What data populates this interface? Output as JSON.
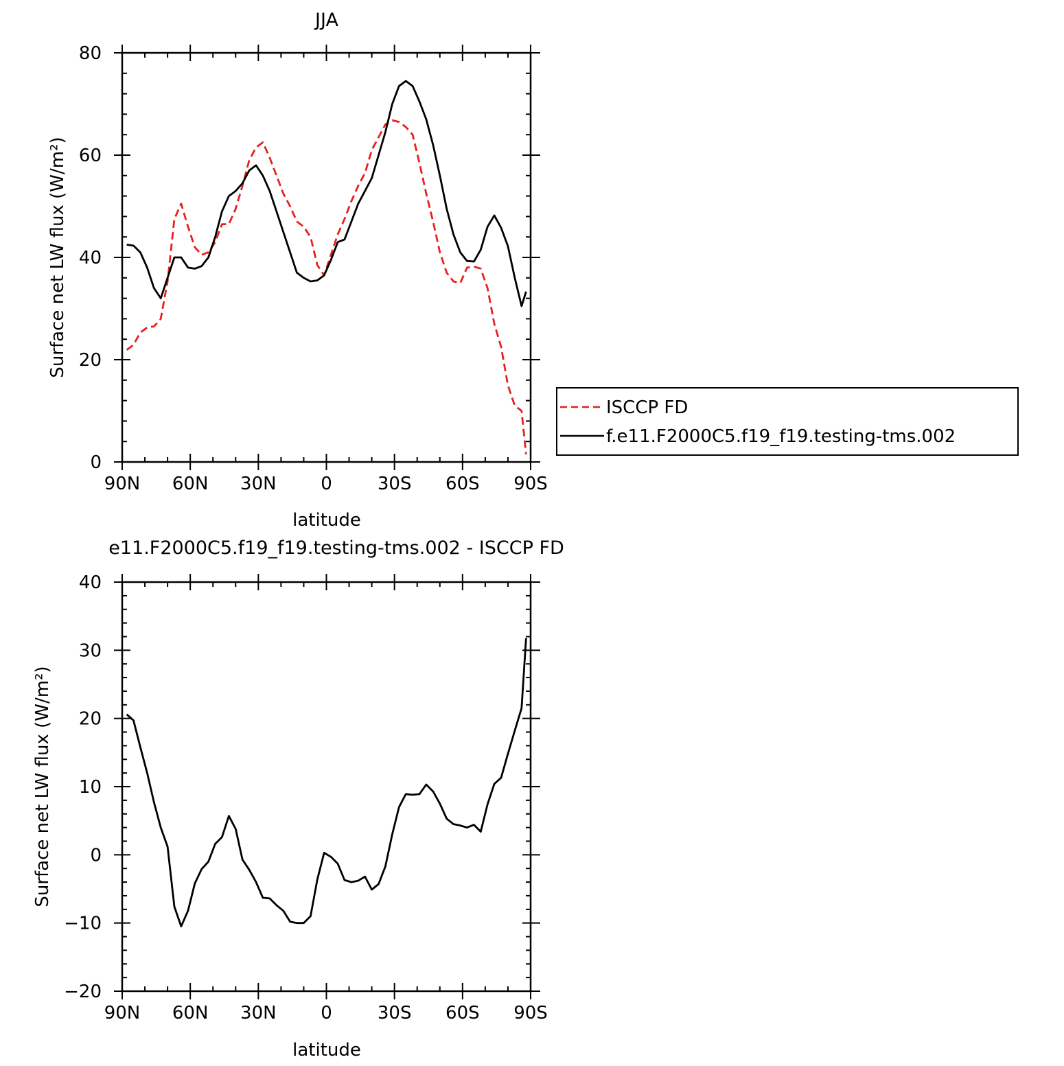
{
  "colors": {
    "obs": "#e8201c",
    "model": "#000000",
    "diff": "#000000"
  },
  "chart_data": [
    {
      "type": "line",
      "title": "JJA",
      "xlabel": "latitude",
      "ylabel": "Surface net LW flux (W/m²)",
      "xlim": [
        90,
        -90
      ],
      "ylim": [
        0,
        80
      ],
      "xticks": [
        {
          "value": 90,
          "label": "90N"
        },
        {
          "value": 60,
          "label": "60N"
        },
        {
          "value": 30,
          "label": "30N"
        },
        {
          "value": 0,
          "label": "0"
        },
        {
          "value": -30,
          "label": "30S"
        },
        {
          "value": -60,
          "label": "60S"
        },
        {
          "value": -90,
          "label": "90S"
        }
      ],
      "yticks": [
        {
          "value": 0,
          "label": "0"
        },
        {
          "value": 20,
          "label": "20"
        },
        {
          "value": 40,
          "label": "40"
        },
        {
          "value": 60,
          "label": "60"
        },
        {
          "value": 80,
          "label": "80"
        }
      ],
      "legend_position": "right",
      "series": [
        {
          "name": "ISCCP FD",
          "style": "dashed",
          "color": "#e8201c",
          "x": [
            88,
            85,
            82,
            79,
            76,
            73,
            70,
            67,
            64,
            61,
            58,
            55,
            52,
            49,
            46,
            43,
            40,
            37,
            34,
            31,
            28,
            25,
            22,
            19,
            16,
            13,
            10,
            7,
            4,
            1,
            -2,
            -5,
            -8,
            -11,
            -14,
            -17,
            -20,
            -23,
            -26,
            -29,
            -32,
            -35,
            -38,
            -41,
            -44,
            -47,
            -50,
            -53,
            -56,
            -59,
            -62,
            -65,
            -68,
            -71,
            -74,
            -77,
            -80,
            -83,
            -86,
            -88
          ],
          "y": [
            21.9,
            22.9,
            25.3,
            26.3,
            26.5,
            28.0,
            35.3,
            47.5,
            50.5,
            46.0,
            42.0,
            40.5,
            41.0,
            43.0,
            46.5,
            46.5,
            49.5,
            54.0,
            59.0,
            61.5,
            62.5,
            59.5,
            56.0,
            52.5,
            50.0,
            47.0,
            46.0,
            44.0,
            38.5,
            36.5,
            40.5,
            44.5,
            47.5,
            51.0,
            54.0,
            56.5,
            61.0,
            63.5,
            66.0,
            66.8,
            66.5,
            65.5,
            64.0,
            58.5,
            52.5,
            47.0,
            41.0,
            37.0,
            35.3,
            35.0,
            38.0,
            38.2,
            37.8,
            34.0,
            27.0,
            22.5,
            15.0,
            11.0,
            10.0,
            1.5
          ]
        },
        {
          "name": "f.e11.F2000C5.f19_f19.testing-tms.002",
          "style": "solid",
          "color": "#000000",
          "x": [
            88,
            85,
            82,
            79,
            76,
            73,
            70,
            67,
            64,
            61,
            58,
            55,
            52,
            49,
            46,
            43,
            40,
            37,
            34,
            31,
            28,
            25,
            22,
            19,
            16,
            13,
            10,
            7,
            4,
            1,
            -2,
            -5,
            -8,
            -11,
            -14,
            -17,
            -20,
            -23,
            -26,
            -29,
            -32,
            -35,
            -38,
            -41,
            -44,
            -47,
            -50,
            -53,
            -56,
            -59,
            -62,
            -65,
            -68,
            -71,
            -74,
            -77,
            -80,
            -83,
            -86,
            -88
          ],
          "y": [
            42.5,
            42.3,
            41.0,
            38.0,
            34.0,
            32.0,
            36.0,
            40.0,
            40.0,
            38.0,
            37.8,
            38.3,
            40.0,
            44.0,
            49.0,
            52.0,
            53.0,
            54.5,
            57.0,
            58.0,
            56.0,
            53.0,
            49.0,
            45.0,
            41.0,
            37.0,
            36.0,
            35.3,
            35.5,
            36.5,
            39.5,
            43.0,
            43.5,
            47.0,
            50.5,
            53.0,
            55.5,
            60.0,
            64.5,
            70.0,
            73.5,
            74.5,
            73.5,
            70.5,
            67.0,
            62.0,
            56.0,
            49.5,
            44.5,
            41.0,
            39.3,
            39.2,
            41.5,
            46.0,
            48.2,
            45.8,
            42.2,
            36.0,
            30.5,
            33.3
          ]
        }
      ]
    },
    {
      "type": "line",
      "title": "e11.F2000C5.f19_f19.testing-tms.002 - ISCCP FD",
      "xlabel": "latitude",
      "ylabel": "Surface net LW flux (W/m²)",
      "xlim": [
        90,
        -90
      ],
      "ylim": [
        -20,
        40
      ],
      "xticks": [
        {
          "value": 90,
          "label": "90N"
        },
        {
          "value": 60,
          "label": "60N"
        },
        {
          "value": 30,
          "label": "30N"
        },
        {
          "value": 0,
          "label": "0"
        },
        {
          "value": -30,
          "label": "30S"
        },
        {
          "value": -60,
          "label": "60S"
        },
        {
          "value": -90,
          "label": "90S"
        }
      ],
      "yticks": [
        {
          "value": -20,
          "label": "−20"
        },
        {
          "value": -10,
          "label": "−10"
        },
        {
          "value": 0,
          "label": "0"
        },
        {
          "value": 10,
          "label": "10"
        },
        {
          "value": 20,
          "label": "20"
        },
        {
          "value": 30,
          "label": "30"
        },
        {
          "value": 40,
          "label": "40"
        }
      ],
      "series": [
        {
          "style": "solid",
          "color": "#000000",
          "x": [
            88,
            85,
            82,
            79,
            76,
            73,
            70,
            67,
            64,
            61,
            58,
            55,
            52,
            49,
            46,
            43,
            40,
            37,
            34,
            31,
            28,
            25,
            22,
            19,
            16,
            13,
            10,
            7,
            4,
            1,
            -2,
            -5,
            -8,
            -11,
            -14,
            -17,
            -20,
            -23,
            -26,
            -29,
            -32,
            -35,
            -38,
            -41,
            -44,
            -47,
            -50,
            -53,
            -56,
            -59,
            -62,
            -65,
            -68,
            -71,
            -74,
            -77,
            -80,
            -83,
            -86,
            -88
          ],
          "y": [
            20.6,
            19.7,
            15.8,
            12.0,
            7.7,
            4.0,
            1.2,
            -7.6,
            -10.5,
            -8.2,
            -4.2,
            -2.1,
            -1.0,
            1.6,
            2.6,
            5.7,
            3.8,
            -0.7,
            -2.2,
            -4.0,
            -6.3,
            -6.4,
            -7.4,
            -8.2,
            -9.8,
            -10.0,
            -10.0,
            -9.0,
            -3.6,
            0.3,
            -0.3,
            -1.3,
            -3.7,
            -4.0,
            -3.8,
            -3.2,
            -5.1,
            -4.3,
            -1.7,
            3.0,
            7.0,
            8.9,
            8.8,
            8.9,
            10.3,
            9.3,
            7.5,
            5.3,
            4.5,
            4.3,
            4.0,
            4.4,
            3.4,
            7.4,
            10.4,
            11.3,
            14.8,
            18.2,
            21.5,
            31.8
          ]
        }
      ]
    }
  ]
}
